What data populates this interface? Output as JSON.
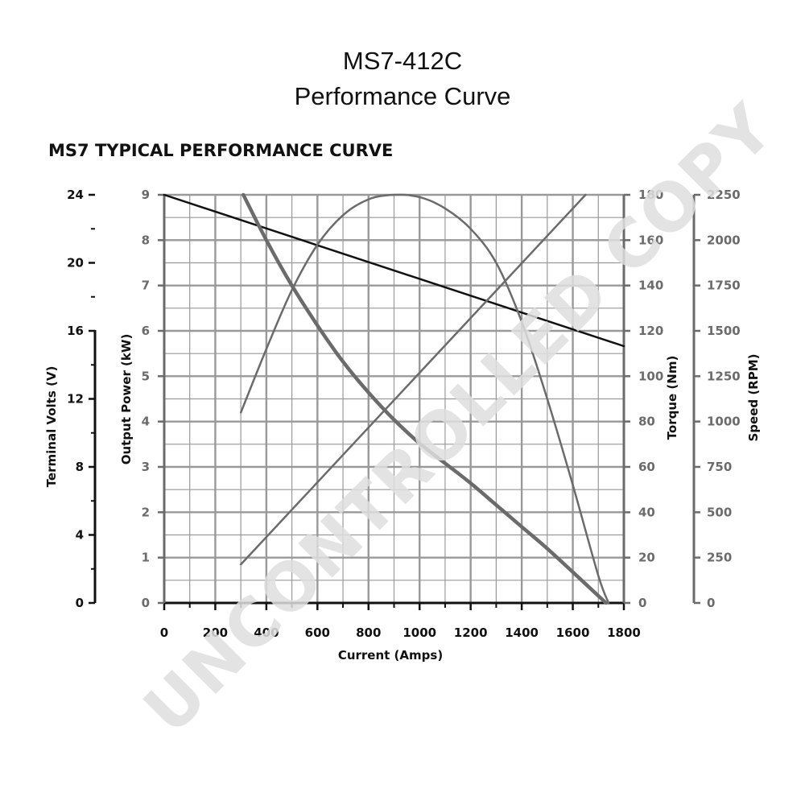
{
  "header": {
    "title_line1": "MS7-412C",
    "title_line2": "Performance Curve",
    "subtitle": "MS7 TYPICAL PERFORMANCE CURVE"
  },
  "watermark": "UNCONTROLLED COPY",
  "colors": {
    "axis_dark": "#111111",
    "axis_gray": "#6b6b6b",
    "grid": "#999999",
    "volts_line": "#111111",
    "series_gray": "#6b6b6b",
    "watermark": "#dedede"
  },
  "chart_data": {
    "type": "line",
    "title": "MS7 TYPICAL PERFORMANCE CURVE",
    "xlabel": "Current (Amps)",
    "xlim": [
      0,
      1800
    ],
    "x_ticks": [
      "0",
      "200",
      "400",
      "600",
      "800",
      "1000",
      "1200",
      "1400",
      "1600",
      "1800"
    ],
    "grid": true,
    "axes": {
      "volts": {
        "label": "Terminal Volts (V)",
        "side": "left-outer",
        "range": [
          0,
          24
        ],
        "ticks": [
          "0",
          "4",
          "8",
          "12",
          "16",
          "20",
          "24"
        ]
      },
      "power": {
        "label": "Output Power (kW)",
        "side": "left-inner",
        "range": [
          0,
          9
        ],
        "ticks": [
          "0",
          "1",
          "2",
          "3",
          "4",
          "5",
          "6",
          "7",
          "8",
          "9"
        ]
      },
      "torque": {
        "label": "Torque (Nm)",
        "side": "right-inner",
        "range": [
          0,
          180
        ],
        "ticks": [
          "0",
          "20",
          "40",
          "60",
          "80",
          "100",
          "120",
          "140",
          "160",
          "180"
        ]
      },
      "speed": {
        "label": "Speed (RPM)",
        "side": "right-outer",
        "range": [
          0,
          2250
        ],
        "ticks": [
          "0",
          "250",
          "500",
          "750",
          "1000",
          "1250",
          "1500",
          "1750",
          "2000",
          "2250"
        ]
      }
    },
    "series": [
      {
        "axis": "volts",
        "x": [
          0,
          1800
        ],
        "y": [
          24,
          15.1
        ]
      },
      {
        "axis": "power",
        "x": [
          300,
          400,
          500,
          600,
          700,
          800,
          900,
          1000,
          1100,
          1200,
          1300,
          1400,
          1500,
          1600,
          1700,
          1740
        ],
        "y": [
          4.2,
          5.6,
          6.9,
          7.9,
          8.55,
          8.9,
          9.0,
          8.95,
          8.7,
          8.25,
          7.5,
          6.2,
          4.5,
          2.6,
          0.6,
          0
        ]
      },
      {
        "axis": "torque",
        "x": [
          300,
          1650
        ],
        "y": [
          17,
          180
        ]
      },
      {
        "axis": "speed",
        "x": [
          310,
          400,
          500,
          600,
          700,
          800,
          900,
          1000,
          1100,
          1200,
          1300,
          1400,
          1500,
          1600,
          1730
        ],
        "y": [
          2250,
          2000,
          1750,
          1530,
          1330,
          1160,
          1010,
          880,
          770,
          660,
          540,
          420,
          300,
          170,
          0
        ]
      }
    ]
  }
}
